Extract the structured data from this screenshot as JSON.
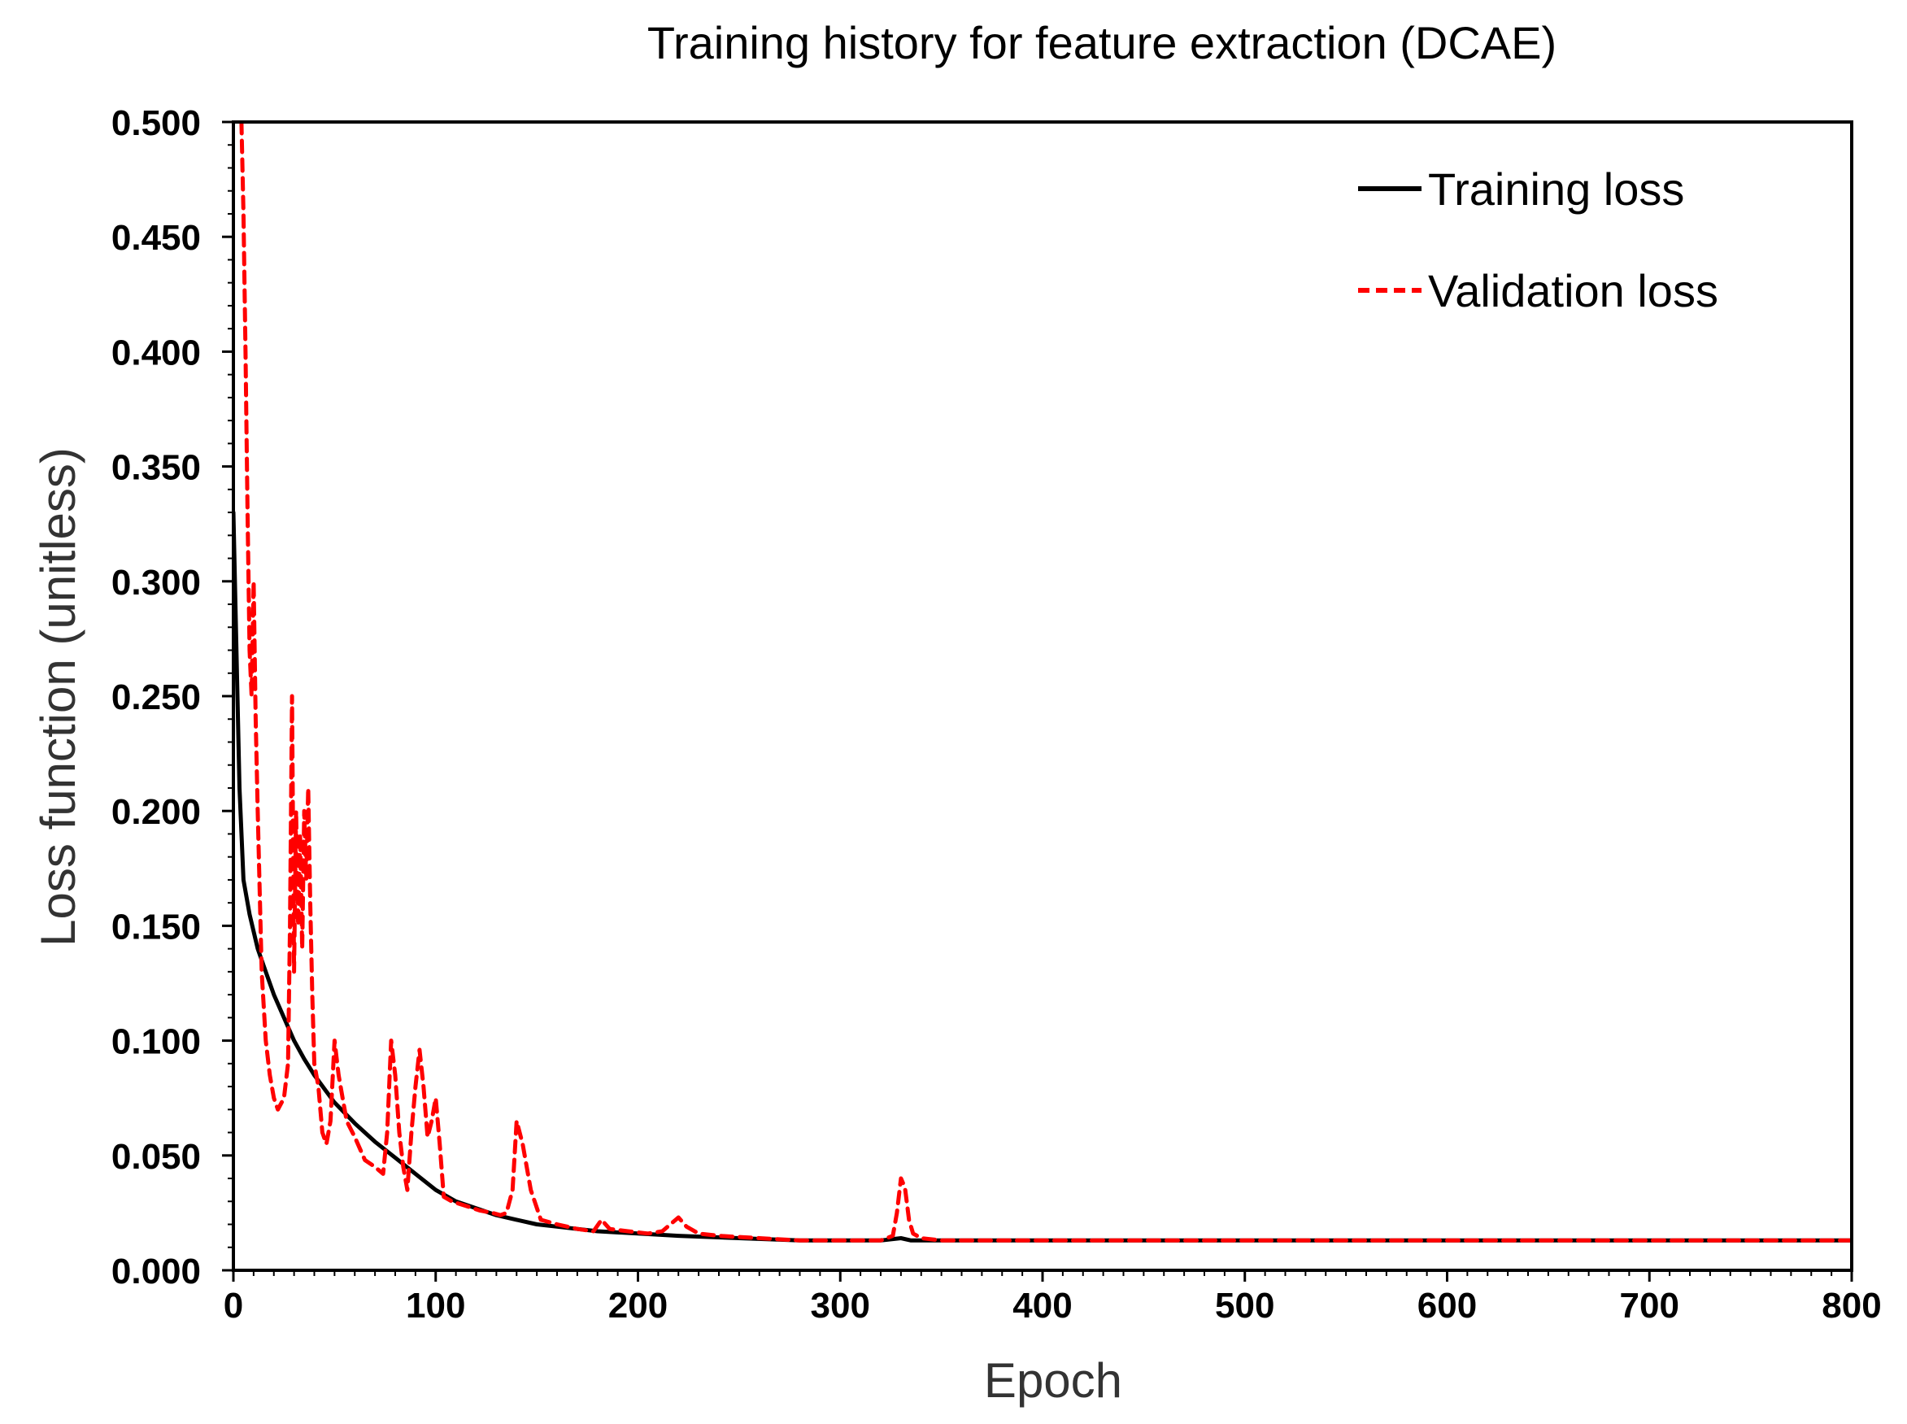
{
  "chart_data": {
    "type": "line",
    "title": "Training history for feature extraction (DCAE)",
    "xlabel": "Epoch",
    "ylabel": "Loss function (unitless)",
    "xlim": [
      0,
      800
    ],
    "ylim": [
      0,
      0.5
    ],
    "x_ticks": [
      0,
      100,
      200,
      300,
      400,
      500,
      600,
      700,
      800
    ],
    "x_tick_labels": [
      "0",
      "100",
      "200",
      "300",
      "400",
      "500",
      "600",
      "700",
      "800"
    ],
    "y_ticks": [
      0,
      0.05,
      0.1,
      0.15,
      0.2,
      0.25,
      0.3,
      0.35,
      0.4,
      0.45,
      0.5
    ],
    "y_tick_labels": [
      "0.000",
      "0.050",
      "0.100",
      "0.150",
      "0.200",
      "0.250",
      "0.300",
      "0.350",
      "0.400",
      "0.450",
      "0.500"
    ],
    "grid": false,
    "legend_position": "top-right",
    "series": [
      {
        "name": "Training loss",
        "color": "#000000",
        "style": "solid",
        "x": [
          0,
          1,
          2,
          3,
          5,
          8,
          12,
          16,
          20,
          25,
          30,
          35,
          40,
          45,
          50,
          60,
          70,
          80,
          90,
          100,
          110,
          120,
          130,
          140,
          150,
          160,
          180,
          200,
          220,
          250,
          280,
          300,
          320,
          330,
          335,
          345,
          360,
          400,
          500,
          600,
          700,
          800
        ],
        "y": [
          0.33,
          0.29,
          0.25,
          0.21,
          0.17,
          0.155,
          0.14,
          0.13,
          0.12,
          0.11,
          0.1,
          0.092,
          0.085,
          0.079,
          0.073,
          0.064,
          0.056,
          0.049,
          0.042,
          0.035,
          0.03,
          0.027,
          0.024,
          0.022,
          0.02,
          0.019,
          0.017,
          0.016,
          0.015,
          0.014,
          0.013,
          0.013,
          0.013,
          0.014,
          0.013,
          0.013,
          0.013,
          0.013,
          0.013,
          0.013,
          0.013,
          0.013
        ]
      },
      {
        "name": "Validation loss",
        "color": "#ff0000",
        "style": "dashed",
        "x": [
          4,
          5,
          6,
          7,
          8,
          9,
          10,
          11,
          12,
          14,
          16,
          18,
          20,
          22,
          25,
          27,
          28,
          29,
          30,
          31,
          32,
          33,
          34,
          35,
          36,
          37,
          38,
          39,
          40,
          42,
          44,
          46,
          48,
          50,
          52,
          54,
          56,
          60,
          65,
          70,
          74,
          76,
          78,
          80,
          82,
          84,
          86,
          88,
          90,
          92,
          94,
          96,
          98,
          100,
          102,
          104,
          108,
          115,
          122,
          128,
          132,
          135,
          138,
          140,
          143,
          147,
          152,
          160,
          170,
          178,
          182,
          186,
          195,
          205,
          212,
          216,
          220,
          224,
          230,
          240,
          260,
          280,
          300,
          320,
          326,
          328,
          330,
          332,
          334,
          336,
          340,
          350,
          400,
          500,
          600,
          700,
          800
        ],
        "y": [
          0.5,
          0.46,
          0.4,
          0.33,
          0.27,
          0.25,
          0.3,
          0.24,
          0.2,
          0.13,
          0.1,
          0.085,
          0.075,
          0.07,
          0.075,
          0.09,
          0.15,
          0.25,
          0.13,
          0.2,
          0.15,
          0.19,
          0.14,
          0.2,
          0.17,
          0.21,
          0.16,
          0.12,
          0.09,
          0.08,
          0.06,
          0.055,
          0.065,
          0.1,
          0.085,
          0.075,
          0.065,
          0.058,
          0.048,
          0.045,
          0.042,
          0.06,
          0.1,
          0.085,
          0.06,
          0.045,
          0.035,
          0.06,
          0.08,
          0.096,
          0.08,
          0.058,
          0.065,
          0.075,
          0.055,
          0.032,
          0.03,
          0.028,
          0.026,
          0.025,
          0.024,
          0.025,
          0.035,
          0.065,
          0.055,
          0.035,
          0.022,
          0.02,
          0.018,
          0.017,
          0.022,
          0.018,
          0.017,
          0.016,
          0.017,
          0.02,
          0.023,
          0.019,
          0.016,
          0.015,
          0.014,
          0.013,
          0.013,
          0.013,
          0.015,
          0.025,
          0.04,
          0.036,
          0.022,
          0.016,
          0.014,
          0.013,
          0.013,
          0.013,
          0.013,
          0.013,
          0.013
        ]
      }
    ]
  }
}
